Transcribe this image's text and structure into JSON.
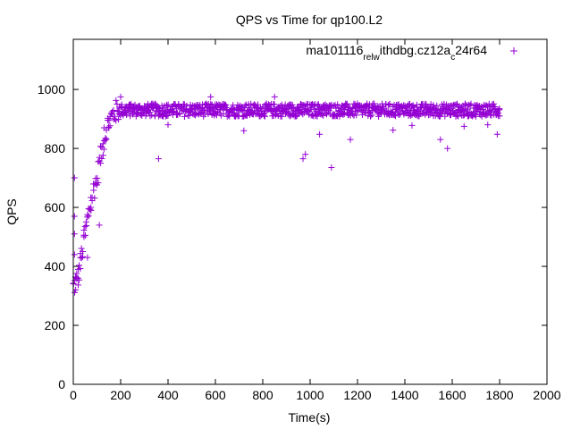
{
  "chart_data": {
    "type": "scatter",
    "title": "QPS vs Time for qp100.L2",
    "xlabel": "Time(s)",
    "ylabel": "QPS",
    "xlim": [
      0,
      2000
    ],
    "ylim": [
      0,
      1170
    ],
    "x_ticks": [
      0,
      200,
      400,
      600,
      800,
      1000,
      1200,
      1400,
      1600,
      1800,
      2000
    ],
    "y_ticks": [
      0,
      200,
      400,
      600,
      800,
      1000
    ],
    "grid": false,
    "legend_position": "top-right",
    "series": [
      {
        "name": "ma101116_rel_withdbg.cz12a_c24r64",
        "legend_parts": [
          {
            "text": "ma101116",
            "sub": false
          },
          {
            "text": "rel",
            "sub": true
          },
          {
            "text": "w",
            "sub": true
          },
          {
            "text": "ithdbg.cz12a",
            "sub": false
          },
          {
            "text": "c",
            "sub": true
          },
          {
            "text": "24r64",
            "sub": false
          }
        ],
        "color": "#9400d3",
        "marker": "+",
        "sample_interval": 5,
        "ramp_profile": [
          [
            0,
            330
          ],
          [
            20,
            360
          ],
          [
            40,
            460
          ],
          [
            60,
            560
          ],
          [
            80,
            640
          ],
          [
            100,
            700
          ],
          [
            120,
            790
          ],
          [
            140,
            870
          ],
          [
            160,
            905
          ],
          [
            180,
            925
          ],
          [
            200,
            930
          ],
          [
            1800,
            930
          ]
        ],
        "notable_points": [
          [
            5,
            700
          ],
          [
            5,
            570
          ],
          [
            5,
            510
          ],
          [
            5,
            440
          ],
          [
            10,
            320
          ],
          [
            20,
            360
          ],
          [
            30,
            430
          ],
          [
            45,
            500
          ],
          [
            60,
            430
          ],
          [
            75,
            590
          ],
          [
            110,
            540
          ],
          [
            130,
            870
          ],
          [
            150,
            870
          ],
          [
            200,
            975
          ],
          [
            360,
            765
          ],
          [
            400,
            880
          ],
          [
            580,
            975
          ],
          [
            720,
            860
          ],
          [
            850,
            975
          ],
          [
            970,
            765
          ],
          [
            980,
            780
          ],
          [
            1040,
            848
          ],
          [
            1090,
            735
          ],
          [
            1170,
            830
          ],
          [
            1350,
            862
          ],
          [
            1430,
            878
          ],
          [
            1550,
            830
          ],
          [
            1580,
            800
          ],
          [
            1650,
            875
          ],
          [
            1750,
            880
          ],
          [
            1790,
            848
          ]
        ]
      }
    ]
  }
}
